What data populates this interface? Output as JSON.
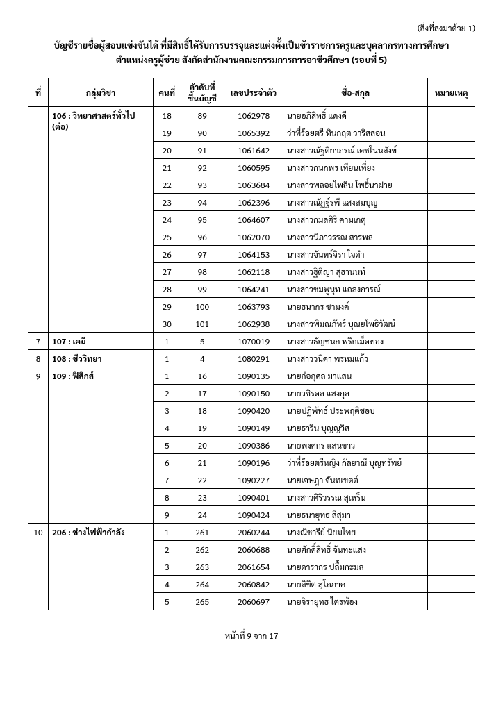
{
  "attachment_label": "(สิ่งที่ส่งมาด้วย 1)",
  "title_line1": "บัญชีรายชื่อผู้สอบแข่งขันได้ ที่มีสิทธิ์ได้รับการบรรจุและแต่งตั้งเป็นข้าราชการครูและบุคลากรทางการศึกษา",
  "title_line2": "ตำแหน่งครูผู้ช่วย สังกัดสำนักงานคณะกรรมการการอาชีวศึกษา (รอบที่ 5)",
  "columns": {
    "idx": "ที่",
    "group": "กลุ่มวิชา",
    "n": "คนที่",
    "rank": "ลำดับที่ขึ้นบัญชี",
    "id": "เลขประจำตัว",
    "name": "ชื่อ-สกุล",
    "note": "หมายเหตุ"
  },
  "footer": "หน้าที่ 9 จาก 17",
  "groups": [
    {
      "idx": "",
      "label": "106 : วิทยาศาสตร์ทั่วไป",
      "label2": "(ต่อ)",
      "rows": [
        {
          "n": "18",
          "rank": "89",
          "id": "1062978",
          "name": "นายอภิสิทธิ์ แดงดี"
        },
        {
          "n": "19",
          "rank": "90",
          "id": "1065392",
          "name": "ว่าที่ร้อยตรี ทินกฤต วาริสสอน"
        },
        {
          "n": "20",
          "rank": "91",
          "id": "1061642",
          "name": "นางสาวณัฐติยาภรณ์ เดชโนนสังข์"
        },
        {
          "n": "21",
          "rank": "92",
          "id": "1060595",
          "name": "นางสาวกนกพร เทียนเที่ยง"
        },
        {
          "n": "22",
          "rank": "93",
          "id": "1063684",
          "name": "นางสาวพลอยไพลิน โพธิ์นาฝาย"
        },
        {
          "n": "23",
          "rank": "94",
          "id": "1062396",
          "name": "นางสาวณัฏฐ์รพี แสงสมบุญ"
        },
        {
          "n": "24",
          "rank": "95",
          "id": "1064607",
          "name": "นางสาวกมลศิริ คามเกตุ"
        },
        {
          "n": "25",
          "rank": "96",
          "id": "1062070",
          "name": "นางสาวนิภาวรรณ สารพล"
        },
        {
          "n": "26",
          "rank": "97",
          "id": "1064153",
          "name": "นางสาวจันทร์จิรา ใจดำ"
        },
        {
          "n": "27",
          "rank": "98",
          "id": "1062118",
          "name": "นางสาวฐิติญา สุธานนท์"
        },
        {
          "n": "28",
          "rank": "99",
          "id": "1064241",
          "name": "นางสาวชมพูนุท แถลงการณ์"
        },
        {
          "n": "29",
          "rank": "100",
          "id": "1063793",
          "name": "นายธนากร ซามงค์"
        },
        {
          "n": "30",
          "rank": "101",
          "id": "1062938",
          "name": "นางสาวพิมณภัทร์ บุณยโพธิวัฒน์"
        }
      ]
    },
    {
      "idx": "7",
      "label": "107 : เคมี",
      "rows": [
        {
          "n": "1",
          "rank": "5",
          "id": "1070019",
          "name": "นางสาวธัญชนก พริกเม็ดทอง"
        }
      ]
    },
    {
      "idx": "8",
      "label": "108 : ชีววิทยา",
      "rows": [
        {
          "n": "1",
          "rank": "4",
          "id": "1080291",
          "name": "นางสาววนิดา พรหมแก้ว"
        }
      ]
    },
    {
      "idx": "9",
      "label": "109 : ฟิสิกส์",
      "rows": [
        {
          "n": "1",
          "rank": "16",
          "id": "1090135",
          "name": "นายก่อกุศล มาแสน"
        },
        {
          "n": "2",
          "rank": "17",
          "id": "1090150",
          "name": "นายวชิรดล แสงกุล"
        },
        {
          "n": "3",
          "rank": "18",
          "id": "1090420",
          "name": "นายปฏิพัทธ์ ประพฤติชอบ"
        },
        {
          "n": "4",
          "rank": "19",
          "id": "1090149",
          "name": "นายธาริน บุญญวิส"
        },
        {
          "n": "5",
          "rank": "20",
          "id": "1090386",
          "name": "นายพงศกร แสนขาว"
        },
        {
          "n": "6",
          "rank": "21",
          "id": "1090196",
          "name": "ว่าที่ร้อยตรีหญิง กัลยาณี บุญทรัพย์"
        },
        {
          "n": "7",
          "rank": "22",
          "id": "1090227",
          "name": "นายเจษฎา จันทเขตต์"
        },
        {
          "n": "8",
          "rank": "23",
          "id": "1090401",
          "name": "นางสาวศิริวรรณ สุเหร็น"
        },
        {
          "n": "9",
          "rank": "24",
          "id": "1090424",
          "name": "นายธนายุทธ สีสุมา"
        }
      ]
    },
    {
      "idx": "10",
      "label": "206 : ช่างไฟฟ้ากำลัง",
      "rows": [
        {
          "n": "1",
          "rank": "261",
          "id": "2060244",
          "name": "นางณิชารีย์ นิยมไทย"
        },
        {
          "n": "2",
          "rank": "262",
          "id": "2060688",
          "name": "นายศักดิ์สิทธิ์ จันทะแสง"
        },
        {
          "n": "3",
          "rank": "263",
          "id": "2061654",
          "name": "นายดารากร ปลื้มกะมล"
        },
        {
          "n": "4",
          "rank": "264",
          "id": "2060842",
          "name": "นายลิขิต สุโภภาค"
        },
        {
          "n": "5",
          "rank": "265",
          "id": "2060697",
          "name": "นายจิรายุทธ ไตรพ้อง"
        }
      ]
    }
  ]
}
